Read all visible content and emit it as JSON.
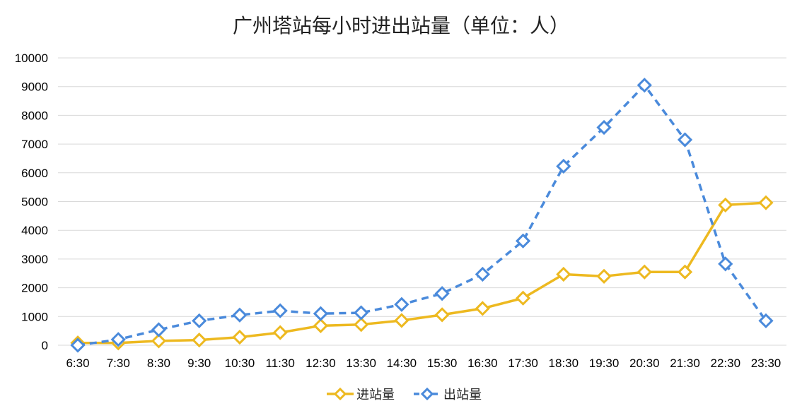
{
  "chart_data": {
    "type": "line",
    "title": "广州塔站每小时进出站量（单位：人）",
    "xlabel": "",
    "ylabel": "",
    "categories": [
      "6:30",
      "7:30",
      "8:30",
      "9:30",
      "10:30",
      "11:30",
      "12:30",
      "13:30",
      "14:30",
      "15:30",
      "16:30",
      "17:30",
      "18:30",
      "19:30",
      "20:30",
      "21:30",
      "22:30",
      "23:30"
    ],
    "ylim": [
      0,
      10000
    ],
    "yticks": [
      "0",
      "1000",
      "2000",
      "3000",
      "4000",
      "5000",
      "6000",
      "7000",
      "8000",
      "9000",
      "10000"
    ],
    "grid": true,
    "legend_position": "bottom",
    "series": [
      {
        "name": "进站量",
        "color": "#EDB920",
        "line_style": "solid",
        "marker": "diamond",
        "values": [
          80,
          80,
          150,
          180,
          280,
          440,
          680,
          720,
          860,
          1060,
          1280,
          1640,
          2470,
          2400,
          2550,
          2550,
          4880,
          4960
        ]
      },
      {
        "name": "出站量",
        "color": "#4A8ADB",
        "line_style": "dashed",
        "marker": "diamond",
        "values": [
          0,
          200,
          540,
          850,
          1050,
          1200,
          1100,
          1130,
          1420,
          1800,
          2470,
          3630,
          6230,
          7580,
          9050,
          7150,
          2830,
          850
        ]
      }
    ]
  }
}
